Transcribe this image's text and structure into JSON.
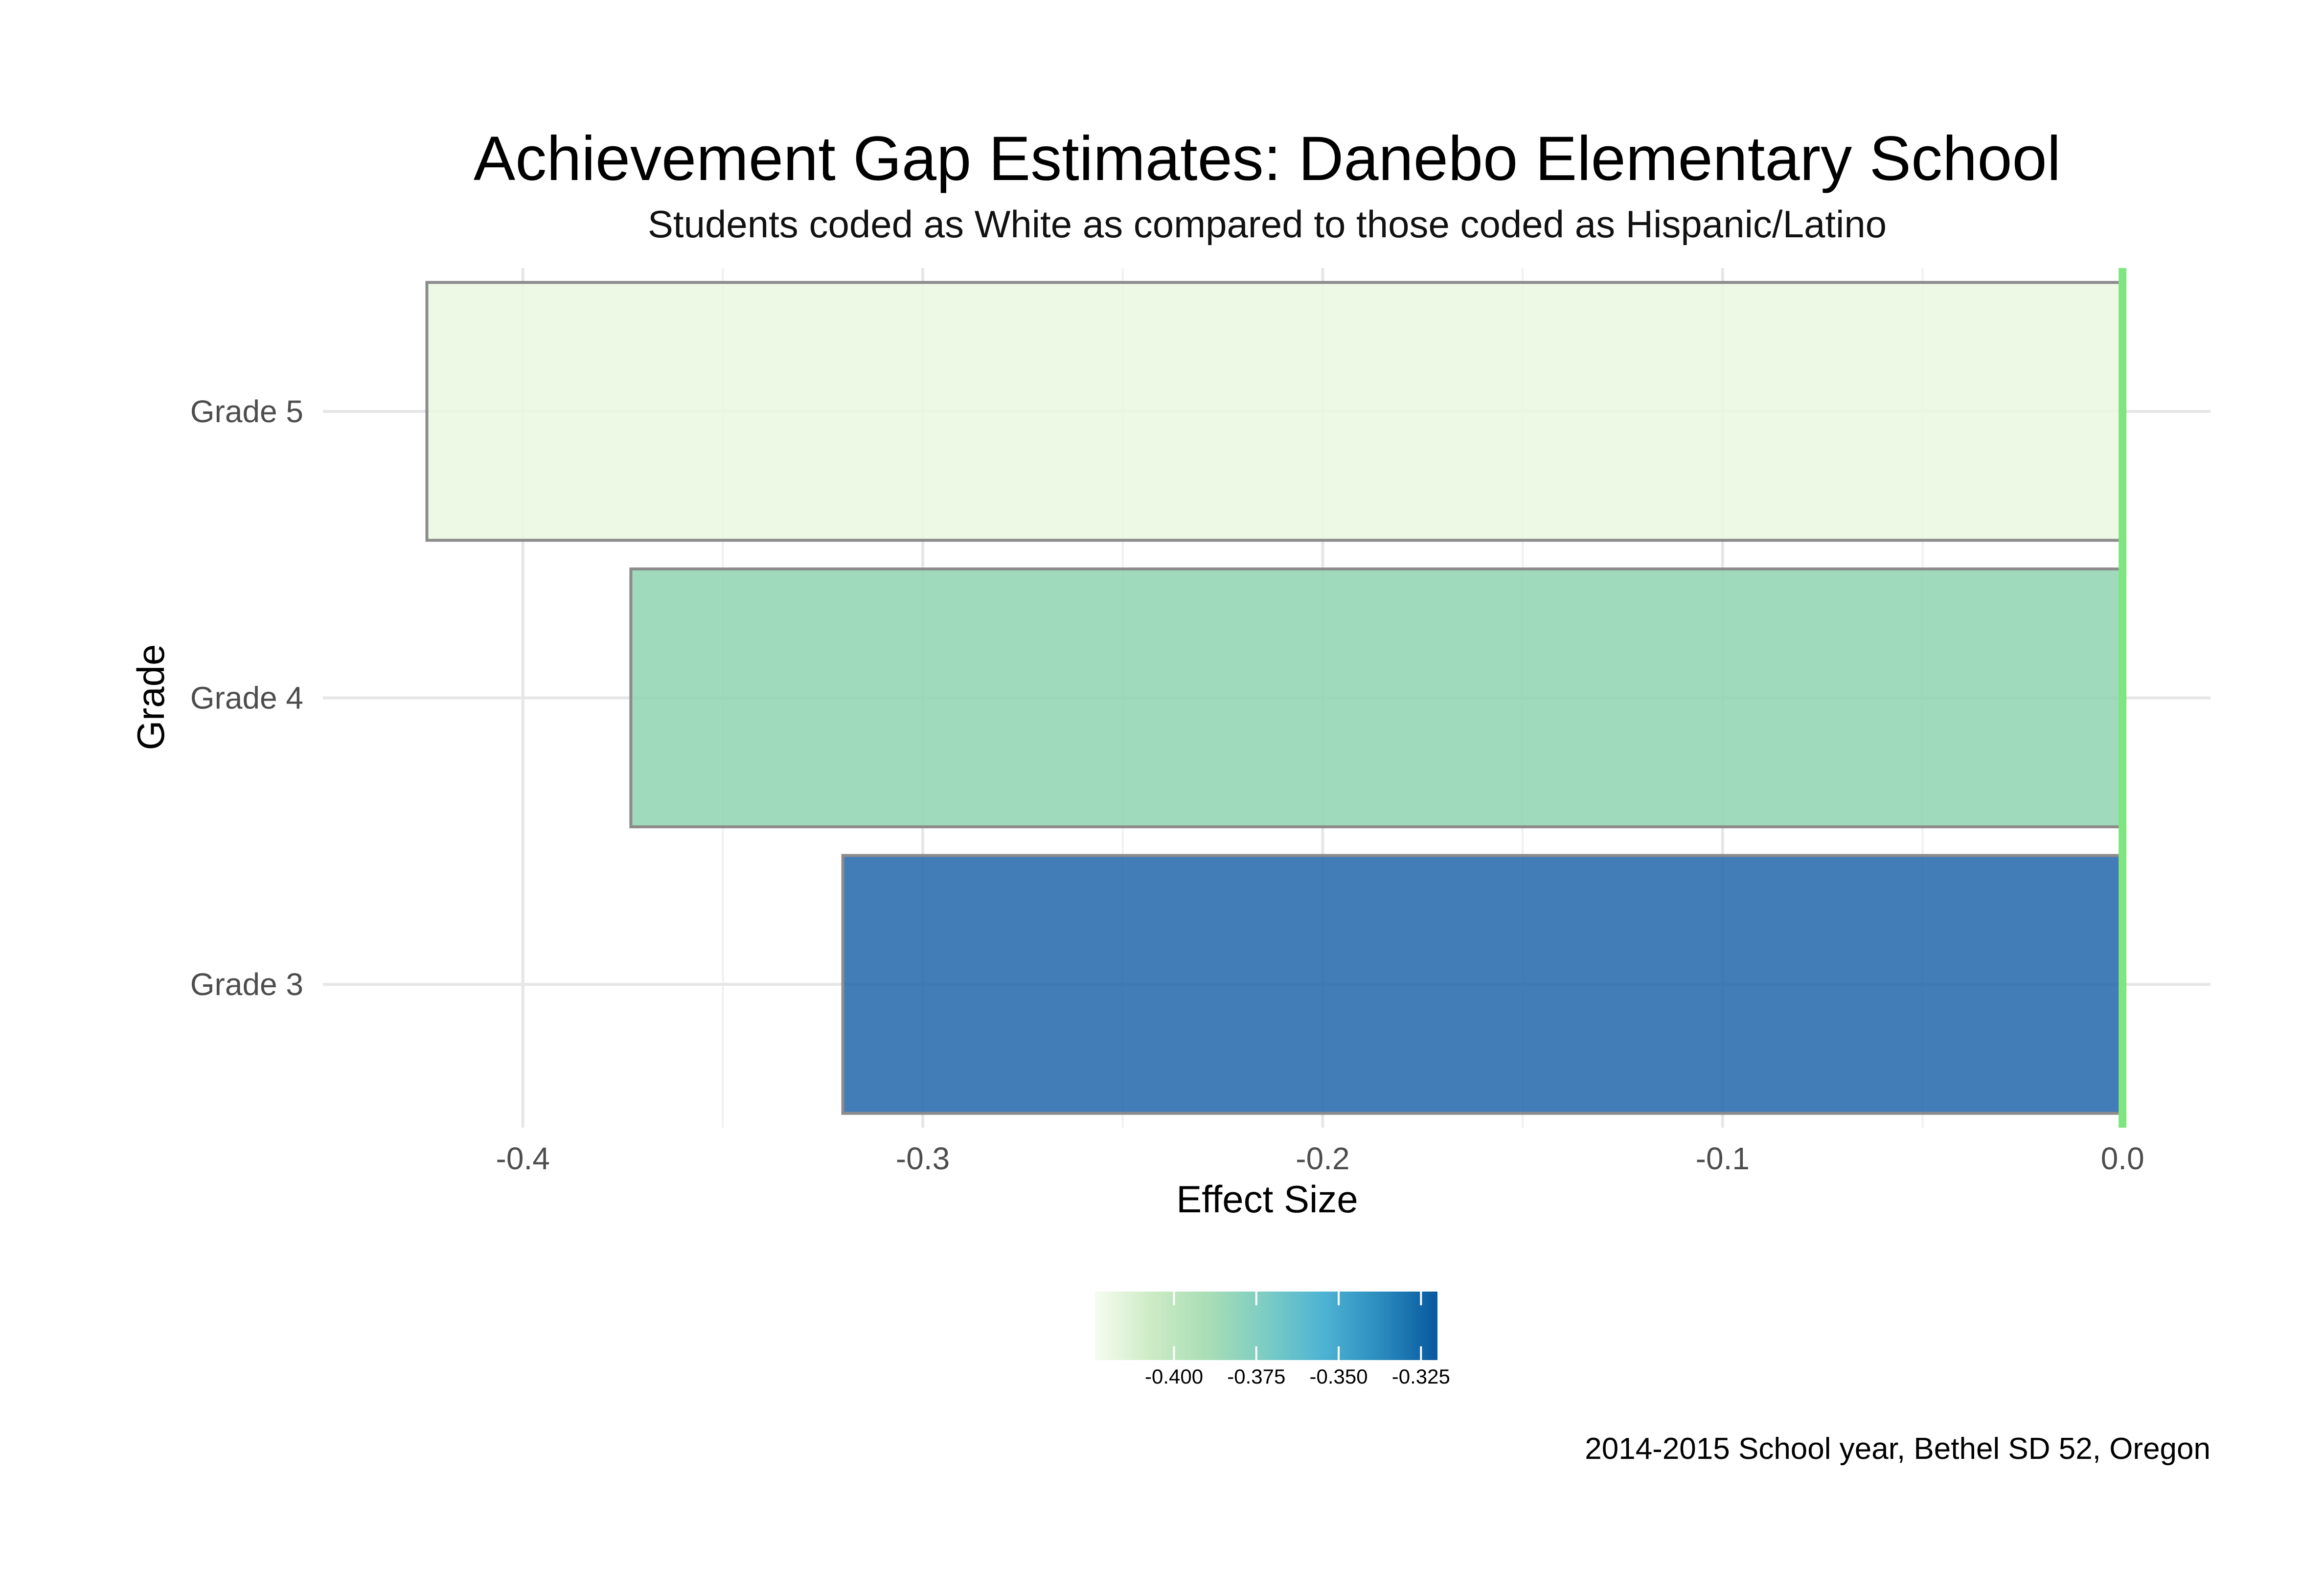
{
  "chart_data": {
    "type": "bar",
    "orientation": "horizontal",
    "title": "Achievement Gap Estimates: Danebo Elementary School",
    "subtitle": "Students coded as White as compared to those coded as Hispanic/Latino",
    "caption": "2014-2015 School year, Bethel SD 52, Oregon",
    "xlabel": "Effect Size",
    "ylabel": "Grade",
    "categories": [
      "Grade 3",
      "Grade 4",
      "Grade 5"
    ],
    "values": [
      -0.32,
      -0.373,
      -0.424
    ],
    "bar_colors": [
      "#2166ac",
      "#8fd4b0",
      "#eaf7e1"
    ],
    "bar_outline_color": "#8c8c8c",
    "bar_opacity": 0.85,
    "xlim": [
      -0.45,
      0.022
    ],
    "xticks": [
      -0.4,
      -0.3,
      -0.2,
      -0.1,
      0.0
    ],
    "xtick_labels": [
      "-0.4",
      "-0.3",
      "-0.2",
      "-0.1",
      "0.0"
    ],
    "reference_line": {
      "x": 0.0,
      "color": "#7fe57f"
    },
    "grid": true,
    "legend": {
      "type": "colorbar",
      "placement": "bottom",
      "range": [
        -0.424,
        -0.32
      ],
      "ticks": [
        -0.4,
        -0.375,
        -0.35,
        -0.325
      ],
      "tick_labels": [
        "-0.400",
        "-0.375",
        "-0.350",
        "-0.325"
      ],
      "gradient_colors": [
        "#f7fcf0",
        "#ccebc5",
        "#a8ddb5",
        "#7bccc4",
        "#4eb3d3",
        "#2b8cbe",
        "#08589e"
      ]
    }
  }
}
